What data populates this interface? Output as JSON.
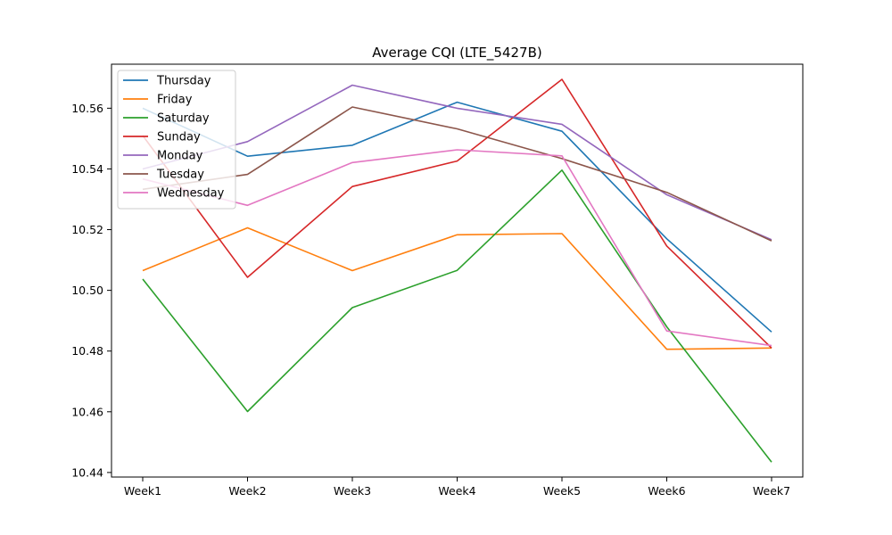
{
  "chart_data": {
    "type": "line",
    "title": "Average CQI (LTE_5427B)",
    "xlabel": "",
    "ylabel": "",
    "categories": [
      "Week1",
      "Week2",
      "Week3",
      "Week4",
      "Week5",
      "Week6",
      "Week7"
    ],
    "ylim": [
      10.4385,
      10.5745
    ],
    "yticks": [
      10.44,
      10.46,
      10.48,
      10.5,
      10.52,
      10.54,
      10.56
    ],
    "ytick_labels": [
      "10.44",
      "10.46",
      "10.48",
      "10.50",
      "10.52",
      "10.54",
      "10.56"
    ],
    "grid": false,
    "legend_position": "top-left",
    "series": [
      {
        "name": "Thursday",
        "color": "#1f77b4",
        "values": [
          10.56,
          10.5442,
          10.5478,
          10.562,
          10.5524,
          10.517,
          10.4863
        ]
      },
      {
        "name": "Friday",
        "color": "#ff7f0e",
        "values": [
          10.5065,
          10.5206,
          10.5065,
          10.5183,
          10.5187,
          10.4806,
          10.481
        ]
      },
      {
        "name": "Saturday",
        "color": "#2ca02c",
        "values": [
          10.5037,
          10.4601,
          10.4943,
          10.5066,
          10.5396,
          10.488,
          10.4434
        ]
      },
      {
        "name": "Sunday",
        "color": "#d62728",
        "values": [
          10.551,
          10.5043,
          10.5342,
          10.5426,
          10.5695,
          10.5146,
          10.481
        ]
      },
      {
        "name": "Monday",
        "color": "#9467bd",
        "values": [
          10.54,
          10.549,
          10.5676,
          10.56,
          10.5547,
          10.5315,
          10.5167
        ]
      },
      {
        "name": "Tuesday",
        "color": "#8c564b",
        "values": [
          10.5333,
          10.5382,
          10.5604,
          10.5532,
          10.5434,
          10.5323,
          10.5163
        ]
      },
      {
        "name": "Wednesday",
        "color": "#e377c2",
        "values": [
          10.5367,
          10.528,
          10.5421,
          10.5463,
          10.5443,
          10.4866,
          10.4818
        ]
      }
    ]
  }
}
